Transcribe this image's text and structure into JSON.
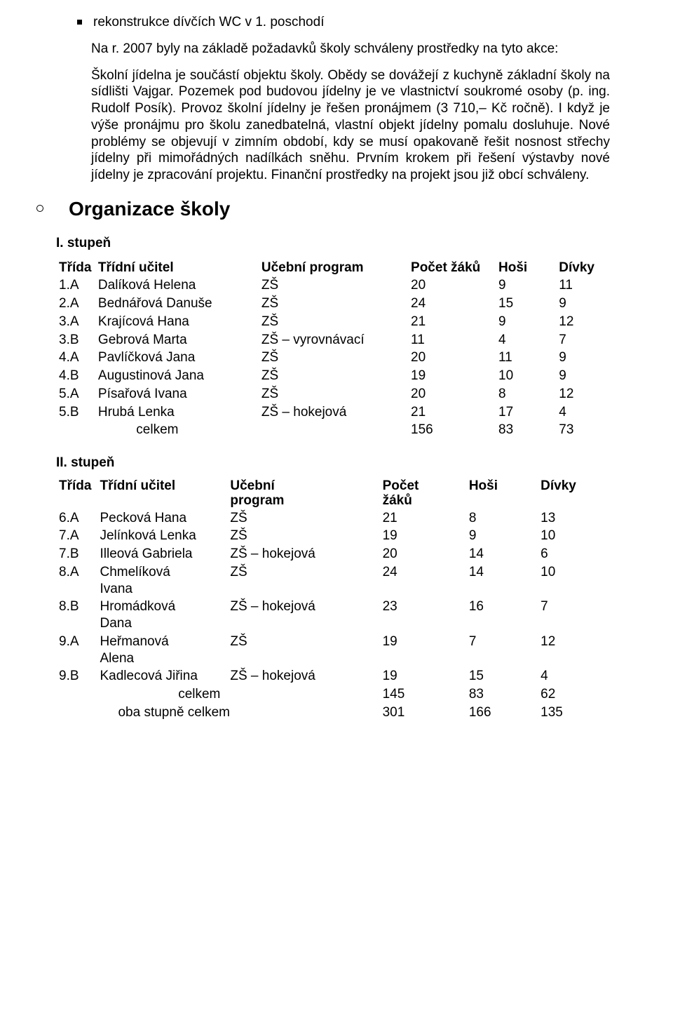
{
  "bullet1": "rekonstrukce dívčích WC v 1. poschodí",
  "para1": "Na r. 2007 byly na základě požadavků školy schváleny prostředky na tyto akce:",
  "para2": "Školní jídelna je součástí objektu školy. Obědy se dovážejí z kuchyně základní školy na sídlišti Vajgar. Pozemek pod budovou jídelny je ve vlastnictví soukromé osoby (p. ing. Rudolf Posík). Provoz školní jídelny je řešen pronájmem (3 710,– Kč ročně). I když je výše pronájmu pro školu zanedbatelná, vlastní objekt jídelny pomalu dosluhuje. Nové problémy se objevují v zimním období, kdy se musí opakovaně řešit nosnost střechy jídelny při mimořádných nadílkách sněhu. Prvním krokem při řešení výstavby nové jídelny je zpracování projektu. Finanční prostředky na projekt jsou již obcí schváleny.",
  "heading_main": "Organizace školy",
  "heading_sub1": "I. stupeň",
  "heading_sub2": "II. stupeň",
  "table1": {
    "headers": {
      "trida": "Třída",
      "ucitel": "Třídní učitel",
      "program": "Učební program",
      "pocet": "Počet žáků",
      "hosi": "Hoši",
      "divky": "Dívky"
    },
    "rows": [
      {
        "trida": "1.A",
        "ucitel": "Dalíková Helena",
        "program": "ZŠ",
        "pocet": "20",
        "hosi": "9",
        "divky": "11"
      },
      {
        "trida": "2.A",
        "ucitel": "Bednářová Danuše",
        "program": "ZŠ",
        "pocet": "24",
        "hosi": "15",
        "divky": "9"
      },
      {
        "trida": "3.A",
        "ucitel": "Krajícová Hana",
        "program": "ZŠ",
        "pocet": "21",
        "hosi": "9",
        "divky": "12"
      },
      {
        "trida": "3.B",
        "ucitel": "Gebrová Marta",
        "program": "ZŠ – vyrovnávací",
        "pocet": "11",
        "hosi": "4",
        "divky": "7"
      },
      {
        "trida": "4.A",
        "ucitel": "Pavlíčková Jana",
        "program": "ZŠ",
        "pocet": "20",
        "hosi": "11",
        "divky": "9"
      },
      {
        "trida": "4.B",
        "ucitel": "Augustinová Jana",
        "program": "ZŠ",
        "pocet": "19",
        "hosi": "10",
        "divky": "9"
      },
      {
        "trida": "5.A",
        "ucitel": "Písařová Ivana",
        "program": "ZŠ",
        "pocet": "20",
        "hosi": "8",
        "divky": "12"
      },
      {
        "trida": "5.B",
        "ucitel": "Hrubá Lenka",
        "program": "ZŠ – hokejová",
        "pocet": "21",
        "hosi": "17",
        "divky": "4"
      }
    ],
    "total": {
      "label": "celkem",
      "pocet": "156",
      "hosi": "83",
      "divky": "73"
    }
  },
  "table2": {
    "headers": {
      "trida": "Třída",
      "ucitel": "Třídní učitel",
      "program_l1": "Učební",
      "program_l2": "program",
      "pocet_l1": "Počet",
      "pocet_l2": "žáků",
      "hosi": "Hoši",
      "divky": "Dívky"
    },
    "rows": [
      {
        "trida": "6.A",
        "ucitel": "Pecková Hana",
        "program": "ZŠ",
        "pocet": "21",
        "hosi": "8",
        "divky": "13"
      },
      {
        "trida": "7.A",
        "ucitel": "Jelínková Lenka",
        "program": "ZŠ",
        "pocet": "19",
        "hosi": "9",
        "divky": "10"
      },
      {
        "trida": "7.B",
        "ucitel": "Illeová Gabriela",
        "program": "ZŠ – hokejová",
        "pocet": "20",
        "hosi": "14",
        "divky": "6"
      },
      {
        "trida": "8.A",
        "ucitel": "Chmelíková Ivana",
        "program": "ZŠ",
        "pocet": "24",
        "hosi": "14",
        "divky": "10"
      },
      {
        "trida": "8.B",
        "ucitel": "Hromádková Dana",
        "program": "ZŠ – hokejová",
        "pocet": "23",
        "hosi": "16",
        "divky": "7"
      },
      {
        "trida": "9.A",
        "ucitel": "Heřmanová Alena",
        "program": "ZŠ",
        "pocet": "19",
        "hosi": "7",
        "divky": "12"
      },
      {
        "trida": "9.B",
        "ucitel": "Kadlecová Jiřina",
        "program": "ZŠ – hokejová",
        "pocet": "19",
        "hosi": "15",
        "divky": "4"
      }
    ],
    "total": {
      "label": "celkem",
      "pocet": "145",
      "hosi": "83",
      "divky": "62"
    },
    "grand": {
      "label": "oba stupně celkem",
      "pocet": "301",
      "hosi": "166",
      "divky": "135"
    }
  }
}
